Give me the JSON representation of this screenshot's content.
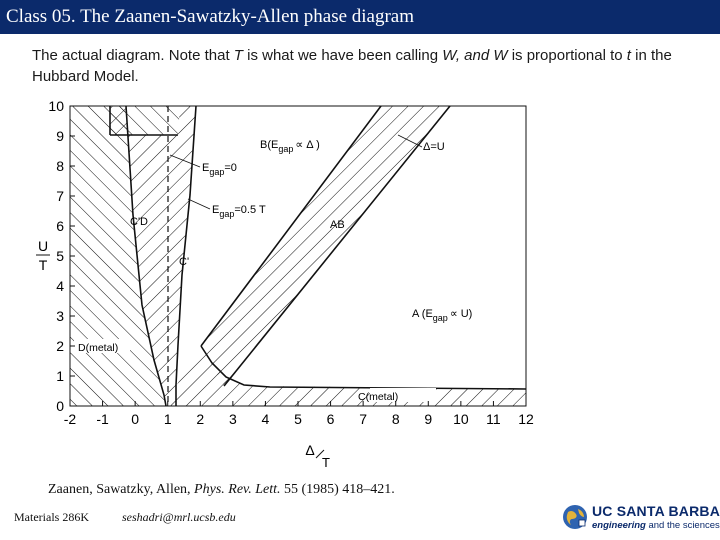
{
  "header": {
    "title": "Class 05. The Zaanen-Sawatzky-Allen phase diagram"
  },
  "caption": {
    "text_1": "The actual diagram. Note that ",
    "T": "T",
    "text_2": " is what we have been calling ",
    "W1": "W, and W",
    "text_3": " is proportional to ",
    "t": "t",
    "text_4": " in the Hubbard Model."
  },
  "chart_data": {
    "type": "diagram",
    "xlabel_num": "Δ",
    "xlabel_den": "T",
    "ylabel_num": "U",
    "ylabel_den": "T",
    "xlim": [
      -2,
      12
    ],
    "ylim": [
      0,
      10
    ],
    "xticks": [
      "-2",
      "-1",
      "0",
      "1",
      "2",
      "3",
      "4",
      "5",
      "6",
      "7",
      "8",
      "9",
      "10",
      "11",
      "12"
    ],
    "yticks": [
      "0",
      "1",
      "2",
      "3",
      "4",
      "5",
      "6",
      "7",
      "8",
      "9",
      "10"
    ],
    "regions": {
      "B": "B(E",
      "B_sub": "gap",
      "B_rest": "∝ Δ )",
      "A": "A (E",
      "A_sub": "gap",
      "A_rest": "∝ U)",
      "AB": "AB",
      "C_metal": "C(metal)",
      "D_metal": "D(metal)",
      "CD": "C'D",
      "Cprime": "C'"
    },
    "annotations": {
      "delta_u": "Δ=U",
      "egap0_E": "E",
      "egap0_sub": "gap",
      "egap0_rest": "=0",
      "egap05_E": "E",
      "egap05_sub": "gap",
      "egap05_rest": "=0.5  T"
    },
    "boundaries": {
      "line_delta_eq_u": [
        [
          2.2,
          2.0
        ],
        [
          8.8,
          9.0
        ]
      ],
      "ab_lower_edge": [
        [
          2.4,
          1.6
        ],
        [
          10.6,
          9.0
        ]
      ],
      "d_region_edge": [
        [
          -0.3,
          10
        ],
        [
          0.9,
          1.2
        ]
      ],
      "c_prime_edge": [
        [
          1.1,
          10
        ],
        [
          1.2,
          2.0
        ]
      ],
      "egap0_dashed": [
        [
          1.0,
          10
        ],
        [
          1.0,
          0
        ]
      ]
    }
  },
  "citation": {
    "authors": "Zaanen, Sawatzky, Allen, ",
    "journal": "Phys. Rev. Lett.",
    "rest": " 55 (1985) 418–421."
  },
  "footer": {
    "course": "Materials 286K",
    "email": "seshadri@mrl.ucsb.edu",
    "logo_name": "UC SANTA BARBARA",
    "logo_sub_bold": "engineering",
    "logo_sub_rest": " and the sciences"
  },
  "colors": {
    "title_bg": "#0b2a6b",
    "title_fg": "#ffffff",
    "logo": "#0b2a6b"
  }
}
